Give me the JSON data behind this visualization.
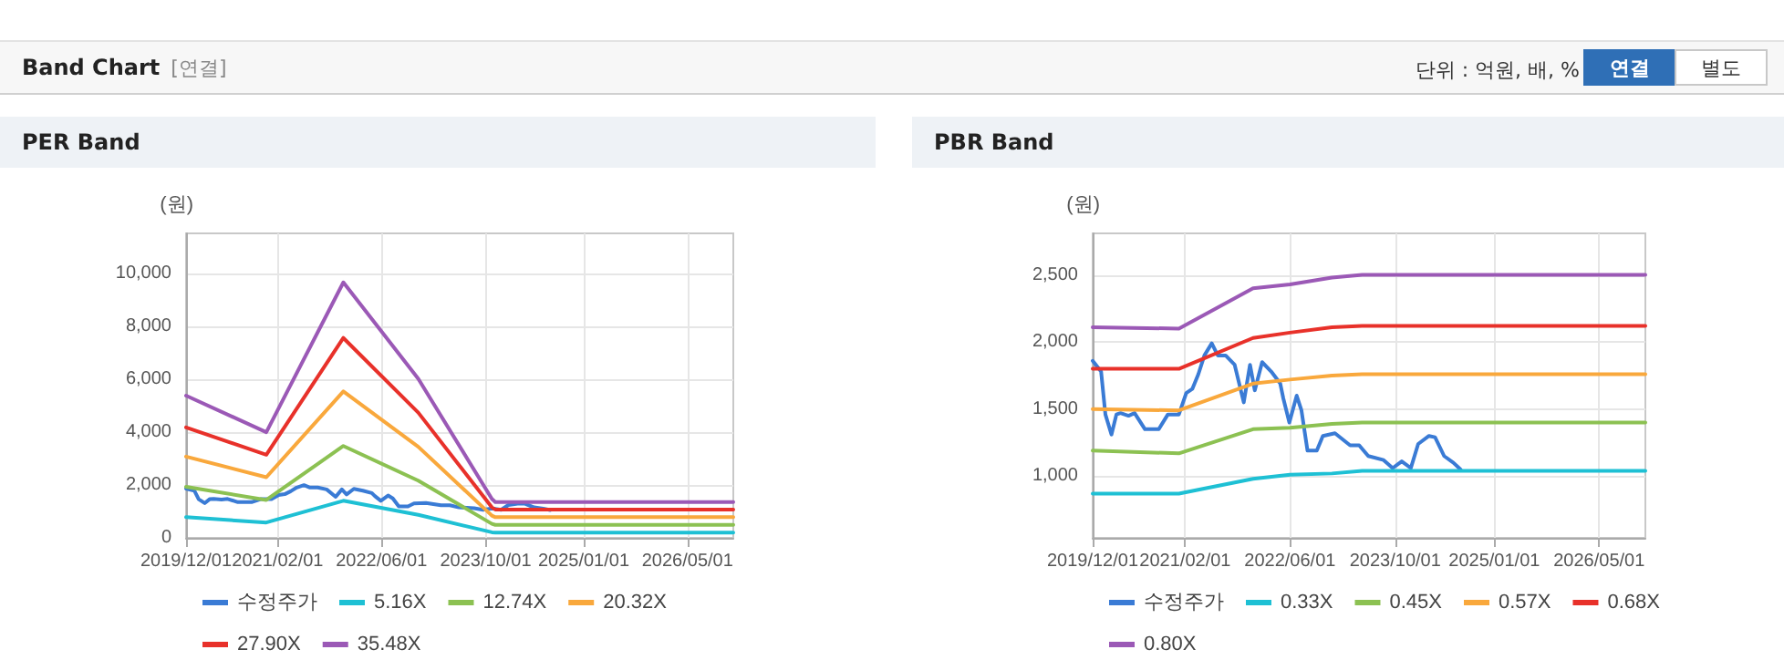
{
  "chart_data": [
    {
      "type": "line",
      "title": "PER Band",
      "ylabel": "(원)",
      "annotations": [
        "Band Chart",
        "[연결]",
        "단위 : 억원, 배, %",
        "연결",
        "별도"
      ],
      "xlim": [
        "2019-12-01",
        "2026-12-01"
      ],
      "xticks": [
        {
          "value": "2019-12-01",
          "label": "2019/12/01"
        },
        {
          "value": "2021-02-01",
          "label": "2021/02/01"
        },
        {
          "value": "2022-06-01",
          "label": "2022/06/01"
        },
        {
          "value": "2023-10-01",
          "label": "2023/10/01"
        },
        {
          "value": "2025-01-01",
          "label": "2025/01/01"
        },
        {
          "value": "2026-05-01",
          "label": "2026/05/01"
        }
      ],
      "ylim": [
        0,
        11500
      ],
      "yticks": [
        0,
        {
          "value": 2000,
          "label": "2,000"
        },
        {
          "value": 4000,
          "label": "4,000"
        },
        {
          "value": 6000,
          "label": "6,000"
        },
        {
          "value": 8000,
          "label": "8,000"
        },
        {
          "value": 10000,
          "label": "10,000"
        }
      ],
      "grid": true,
      "legend": "bottom",
      "marker": "none",
      "series": [
        {
          "name": "수정주가",
          "color": "#3a7bd5",
          "x": [
            "2019-12-01",
            "2020-01-09",
            "2020-01-29",
            "2020-02-26",
            "2020-03-20",
            "2020-04-08",
            "2020-05-15",
            "2020-06-12",
            "2020-07-30",
            "2020-10-02",
            "2020-11-13",
            "2021-01-03",
            "2021-02-06",
            "2021-03-06",
            "2021-04-03",
            "2021-05-01",
            "2021-06-04",
            "2021-07-02",
            "2021-08-07",
            "2021-09-18",
            "2021-10-30",
            "2021-11-28",
            "2021-12-20",
            "2022-01-23",
            "2022-03-06",
            "2022-04-17",
            "2022-05-01",
            "2022-05-29",
            "2022-07-02",
            "2022-07-24",
            "2022-08-21",
            "2022-10-03",
            "2022-10-31",
            "2022-12-26",
            "2023-03-06",
            "2023-04-17",
            "2023-05-29",
            "2023-08-08",
            "2023-09-19",
            "2023-10-31",
            "2023-12-12",
            "2024-01-15",
            "2024-03-05",
            "2024-04-02",
            "2024-05-14",
            "2024-06-26",
            "2024-07-29"
          ],
          "values": [
            1860,
            1780,
            1460,
            1310,
            1460,
            1470,
            1450,
            1470,
            1350,
            1350,
            1460,
            1460,
            1620,
            1650,
            1760,
            1900,
            1990,
            1900,
            1900,
            1830,
            1550,
            1830,
            1640,
            1850,
            1780,
            1690,
            1580,
            1400,
            1600,
            1490,
            1190,
            1190,
            1300,
            1320,
            1230,
            1230,
            1150,
            1120,
            1060,
            1110,
            1060,
            1240,
            1300,
            1290,
            1150,
            1100,
            1050
          ]
        },
        {
          "name": "5.16X",
          "color": "#1ec0d4",
          "x": [
            "2019-12-01",
            "2020-12-10",
            "2021-12-05",
            "2022-11-20",
            "2023-10-30",
            "2023-11-15",
            "2026-12-01"
          ],
          "values": [
            780,
            580,
            1400,
            870,
            210,
            200,
            200
          ]
        },
        {
          "name": "12.74X",
          "color": "#8cc152",
          "x": [
            "2019-12-01",
            "2020-12-10",
            "2021-12-05",
            "2022-11-20",
            "2023-10-30",
            "2023-11-15",
            "2026-12-01"
          ],
          "values": [
            1930,
            1430,
            3470,
            2160,
            530,
            490,
            490
          ]
        },
        {
          "name": "20.32X",
          "color": "#f9a83c",
          "x": [
            "2019-12-01",
            "2020-12-10",
            "2021-12-05",
            "2022-11-20",
            "2023-10-30",
            "2023-11-15",
            "2026-12-01"
          ],
          "values": [
            3070,
            2290,
            5530,
            3440,
            840,
            780,
            780
          ]
        },
        {
          "name": "27.90X",
          "color": "#e8312a",
          "x": [
            "2019-12-01",
            "2020-12-10",
            "2021-12-05",
            "2022-11-20",
            "2023-10-30",
            "2023-11-15",
            "2026-12-01"
          ],
          "values": [
            4170,
            3140,
            7550,
            4730,
            1150,
            1070,
            1070
          ]
        },
        {
          "name": "35.48X",
          "color": "#9b59b6",
          "x": [
            "2019-12-01",
            "2020-12-10",
            "2021-12-05",
            "2022-11-20",
            "2023-10-30",
            "2023-11-15",
            "2026-12-01"
          ],
          "values": [
            5370,
            3990,
            9650,
            6010,
            1470,
            1350,
            1350
          ]
        }
      ]
    },
    {
      "type": "line",
      "title": "PBR Band",
      "ylabel": "(원)",
      "xlim": [
        "2019-12-01",
        "2026-12-01"
      ],
      "xticks": [
        {
          "value": "2019-12-01",
          "label": "2019/12/01"
        },
        {
          "value": "2021-02-01",
          "label": "2021/02/01"
        },
        {
          "value": "2022-06-01",
          "label": "2022/06/01"
        },
        {
          "value": "2023-10-01",
          "label": "2023/10/01"
        },
        {
          "value": "2025-01-01",
          "label": "2025/01/01"
        },
        {
          "value": "2026-05-01",
          "label": "2026/05/01"
        }
      ],
      "ylim": [
        540,
        2810
      ],
      "yticks": [
        {
          "value": 1000,
          "label": "1,000"
        },
        {
          "value": 1500,
          "label": "1,500"
        },
        {
          "value": 2000,
          "label": "2,000"
        },
        {
          "value": 2500,
          "label": "2,500"
        }
      ],
      "grid": true,
      "legend": "bottom",
      "marker": "none",
      "series": [
        {
          "name": "수정주가",
          "color": "#3a7bd5",
          "x": [
            "2019-12-01",
            "2020-01-09",
            "2020-01-29",
            "2020-02-26",
            "2020-03-20",
            "2020-04-08",
            "2020-05-15",
            "2020-06-12",
            "2020-07-30",
            "2020-10-02",
            "2020-11-13",
            "2021-01-03",
            "2021-02-06",
            "2021-03-06",
            "2021-04-03",
            "2021-05-01",
            "2021-06-04",
            "2021-07-02",
            "2021-08-07",
            "2021-09-18",
            "2021-10-30",
            "2021-11-28",
            "2021-12-20",
            "2022-01-23",
            "2022-03-06",
            "2022-04-17",
            "2022-05-01",
            "2022-05-29",
            "2022-07-02",
            "2022-07-24",
            "2022-08-21",
            "2022-10-03",
            "2022-10-31",
            "2022-12-26",
            "2023-03-06",
            "2023-04-17",
            "2023-05-29",
            "2023-08-08",
            "2023-09-19",
            "2023-10-31",
            "2023-12-12",
            "2024-01-15",
            "2024-03-05",
            "2024-04-02",
            "2024-05-14",
            "2024-06-26",
            "2024-07-29"
          ],
          "values": [
            1860,
            1780,
            1460,
            1310,
            1460,
            1470,
            1450,
            1470,
            1350,
            1350,
            1460,
            1460,
            1620,
            1650,
            1760,
            1900,
            1990,
            1900,
            1900,
            1830,
            1550,
            1830,
            1640,
            1850,
            1780,
            1690,
            1580,
            1400,
            1600,
            1490,
            1190,
            1190,
            1300,
            1320,
            1230,
            1230,
            1150,
            1120,
            1060,
            1110,
            1060,
            1240,
            1300,
            1290,
            1150,
            1100,
            1050
          ]
        },
        {
          "name": "0.33X",
          "color": "#1ec0d4",
          "x": [
            "2019-12-01",
            "2021-01-03",
            "2021-12-12",
            "2022-06-01",
            "2022-12-12",
            "2023-05-01",
            "2026-12-01"
          ],
          "values": [
            870,
            870,
            980,
            1010,
            1020,
            1040,
            1040
          ]
        },
        {
          "name": "0.45X",
          "color": "#8cc152",
          "x": [
            "2019-12-01",
            "2021-01-03",
            "2021-12-12",
            "2022-06-01",
            "2022-12-12",
            "2023-05-01",
            "2026-12-01"
          ],
          "values": [
            1190,
            1170,
            1350,
            1360,
            1390,
            1400,
            1400
          ]
        },
        {
          "name": "0.57X",
          "color": "#f9a83c",
          "x": [
            "2019-12-01",
            "2021-01-03",
            "2021-12-12",
            "2022-06-01",
            "2022-12-12",
            "2023-05-01",
            "2026-12-01"
          ],
          "values": [
            1500,
            1490,
            1690,
            1720,
            1750,
            1760,
            1760
          ]
        },
        {
          "name": "0.68X",
          "color": "#e8312a",
          "x": [
            "2019-12-01",
            "2021-01-03",
            "2021-12-12",
            "2022-06-01",
            "2022-12-12",
            "2023-05-01",
            "2026-12-01"
          ],
          "values": [
            1800,
            1800,
            2030,
            2070,
            2110,
            2120,
            2120
          ]
        },
        {
          "name": "0.80X",
          "color": "#9b59b6",
          "x": [
            "2019-12-01",
            "2021-01-03",
            "2021-12-12",
            "2022-06-01",
            "2022-12-12",
            "2023-05-01",
            "2026-12-01"
          ],
          "values": [
            2110,
            2100,
            2400,
            2430,
            2480,
            2500,
            2500
          ]
        }
      ]
    }
  ]
}
